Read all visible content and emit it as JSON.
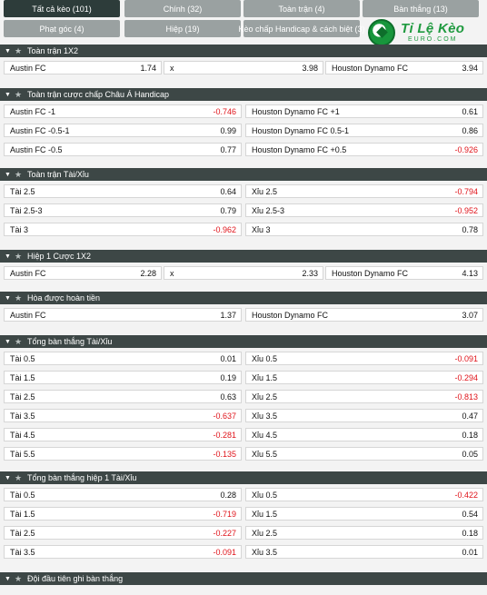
{
  "tabs": [
    {
      "label": "Tất cả kèo (101)",
      "active": true
    },
    {
      "label": "Chính (32)",
      "active": false
    },
    {
      "label": "Toàn trận (4)",
      "active": false
    },
    {
      "label": "Bàn thắng (13)",
      "active": false
    },
    {
      "label": "Phạt góc (4)",
      "active": false
    },
    {
      "label": "Hiệp (19)",
      "active": false
    },
    {
      "label": "Kèo chấp Handicap & cách biệt (3)",
      "active": false
    }
  ],
  "logo": {
    "text": "Tỉ Lệ Kèo",
    "sub": "EURO.COM"
  },
  "sections": [
    {
      "title": "Toàn trận 1X2",
      "layout": "three",
      "rows": [
        [
          {
            "label": "Austin FC",
            "odds": "1.74"
          },
          {
            "label": "x",
            "odds": "3.98"
          },
          {
            "label": "Houston Dynamo FC",
            "odds": "3.94"
          }
        ]
      ]
    },
    {
      "title": "Toàn trận cược chấp Châu Á Handicap",
      "layout": "two",
      "rows": [
        [
          {
            "label": "Austin FC -1",
            "odds": "-0.746"
          },
          {
            "label": "Houston Dynamo FC +1",
            "odds": "0.61"
          }
        ],
        [
          {
            "label": "Austin FC -0.5-1",
            "odds": "0.99"
          },
          {
            "label": "Houston Dynamo FC 0.5-1",
            "odds": "0.86"
          }
        ],
        [
          {
            "label": "Austin FC -0.5",
            "odds": "0.77"
          },
          {
            "label": "Houston Dynamo FC +0.5",
            "odds": "-0.926"
          }
        ]
      ]
    },
    {
      "title": "Toàn trận Tài/Xỉu",
      "layout": "two",
      "rows": [
        [
          {
            "label": "Tài 2.5",
            "odds": "0.64"
          },
          {
            "label": "Xỉu 2.5",
            "odds": "-0.794"
          }
        ],
        [
          {
            "label": "Tài 2.5-3",
            "odds": "0.79"
          },
          {
            "label": "Xỉu 2.5-3",
            "odds": "-0.952"
          }
        ],
        [
          {
            "label": "Tài 3",
            "odds": "-0.962"
          },
          {
            "label": "Xỉu 3",
            "odds": "0.78"
          }
        ]
      ]
    },
    {
      "title": "Hiệp 1 Cược 1X2",
      "layout": "three",
      "rows": [
        [
          {
            "label": "Austin FC",
            "odds": "2.28"
          },
          {
            "label": "x",
            "odds": "2.33"
          },
          {
            "label": "Houston Dynamo FC",
            "odds": "4.13"
          }
        ]
      ]
    },
    {
      "title": "Hòa được hoàn tiền",
      "layout": "two",
      "rows": [
        [
          {
            "label": "Austin FC",
            "odds": "1.37"
          },
          {
            "label": "Houston Dynamo FC",
            "odds": "3.07"
          }
        ]
      ]
    },
    {
      "title": "Tổng bàn thắng Tài/Xỉu",
      "layout": "two",
      "rows": [
        [
          {
            "label": "Tài 0.5",
            "odds": "0.01"
          },
          {
            "label": "Xỉu 0.5",
            "odds": "-0.091"
          }
        ],
        [
          {
            "label": "Tài 1.5",
            "odds": "0.19"
          },
          {
            "label": "Xỉu 1.5",
            "odds": "-0.294"
          }
        ],
        [
          {
            "label": "Tài 2.5",
            "odds": "0.63"
          },
          {
            "label": "Xỉu 2.5",
            "odds": "-0.813"
          }
        ],
        [
          {
            "label": "Tài 3.5",
            "odds": "-0.637"
          },
          {
            "label": "Xỉu 3.5",
            "odds": "0.47"
          }
        ],
        [
          {
            "label": "Tài 4.5",
            "odds": "-0.281"
          },
          {
            "label": "Xỉu 4.5",
            "odds": "0.18"
          }
        ],
        [
          {
            "label": "Tài 5.5",
            "odds": "-0.135"
          },
          {
            "label": "Xỉu 5.5",
            "odds": "0.05"
          }
        ]
      ]
    },
    {
      "title": "Tổng bàn thắng hiệp 1 Tài/Xỉu",
      "layout": "two",
      "rows": [
        [
          {
            "label": "Tài 0.5",
            "odds": "0.28"
          },
          {
            "label": "Xỉu 0.5",
            "odds": "-0.422"
          }
        ],
        [
          {
            "label": "Tài 1.5",
            "odds": "-0.719"
          },
          {
            "label": "Xỉu 1.5",
            "odds": "0.54"
          }
        ],
        [
          {
            "label": "Tài 2.5",
            "odds": "-0.227"
          },
          {
            "label": "Xỉu 2.5",
            "odds": "0.18"
          }
        ],
        [
          {
            "label": "Tài 3.5",
            "odds": "-0.091"
          },
          {
            "label": "Xỉu 3.5",
            "odds": "0.01"
          }
        ]
      ]
    },
    {
      "title": "Đội đầu tiên ghi bàn thắng",
      "layout": "two",
      "rows": []
    }
  ]
}
